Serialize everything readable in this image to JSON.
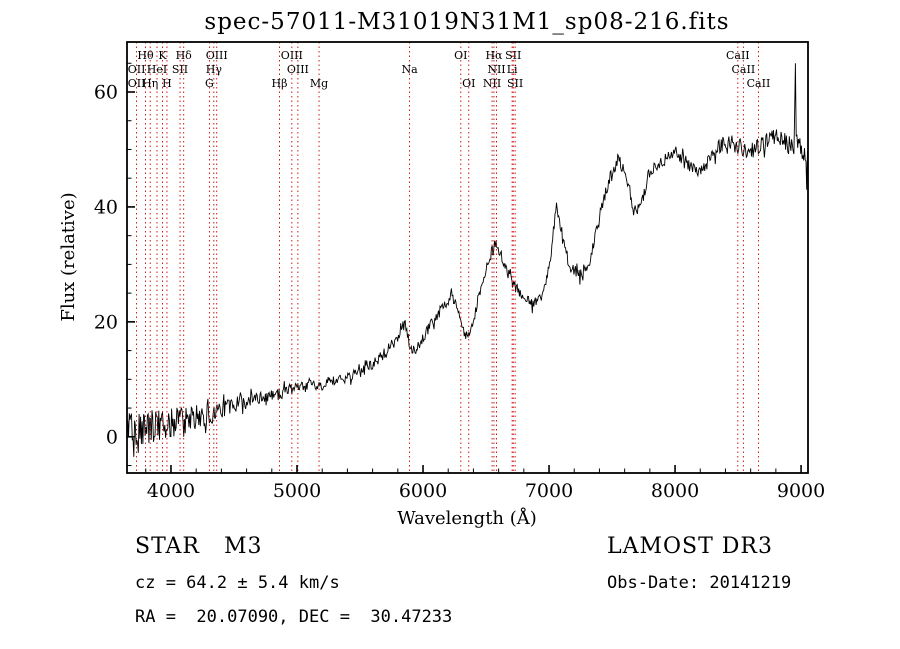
{
  "title": "spec-57011-M31019N31M1_sp08-216.fits",
  "chart_data": {
    "type": "line",
    "title": "spec-57011-M31019N31M1_sp08-216.fits",
    "xlabel": "Wavelength (Å)",
    "ylabel": "Flux (relative)",
    "xlim": [
      3651,
      9055
    ],
    "ylim": [
      -6.3,
      68.7
    ],
    "x_major_ticks": [
      4000,
      5000,
      6000,
      7000,
      8000,
      9000
    ],
    "y_major_ticks": [
      0,
      20,
      40,
      60
    ],
    "x_minor_step": 200,
    "y_minor_step": 5,
    "grid": false,
    "line_color": "#000000",
    "marker_color": "#cc0000",
    "series": [
      {
        "name": "flux",
        "anchors": [
          [
            3651,
            0.8
          ],
          [
            3700,
            1.0
          ],
          [
            3750,
            1.4
          ],
          [
            3800,
            1.6
          ],
          [
            3850,
            1.9
          ],
          [
            3900,
            2.1
          ],
          [
            3950,
            2.3
          ],
          [
            4000,
            2.5
          ],
          [
            4060,
            2.8
          ],
          [
            4120,
            3.0
          ],
          [
            4180,
            3.3
          ],
          [
            4250,
            3.7
          ],
          [
            4310,
            4.0
          ],
          [
            4380,
            4.5
          ],
          [
            4450,
            5.0
          ],
          [
            4550,
            5.8
          ],
          [
            4650,
            6.6
          ],
          [
            4750,
            7.1
          ],
          [
            4830,
            7.5
          ],
          [
            4870,
            7.2
          ],
          [
            4910,
            7.9
          ],
          [
            4960,
            8.3
          ],
          [
            5020,
            8.6
          ],
          [
            5080,
            8.8
          ],
          [
            5140,
            8.9
          ],
          [
            5180,
            8.5
          ],
          [
            5230,
            9.6
          ],
          [
            5300,
            9.9
          ],
          [
            5400,
            10.3
          ],
          [
            5500,
            11.2
          ],
          [
            5600,
            12.6
          ],
          [
            5700,
            14.6
          ],
          [
            5810,
            17.5
          ],
          [
            5860,
            19.5
          ],
          [
            5900,
            15.3
          ],
          [
            5950,
            14.6
          ],
          [
            6000,
            17.2
          ],
          [
            6080,
            20.2
          ],
          [
            6160,
            22.6
          ],
          [
            6230,
            24.6
          ],
          [
            6280,
            22.2
          ],
          [
            6330,
            17.6
          ],
          [
            6390,
            19.0
          ],
          [
            6440,
            24.2
          ],
          [
            6500,
            29.2
          ],
          [
            6545,
            32.2
          ],
          [
            6575,
            33.6
          ],
          [
            6620,
            31.6
          ],
          [
            6700,
            27.2
          ],
          [
            6790,
            24.2
          ],
          [
            6860,
            23.2
          ],
          [
            6910,
            23.8
          ],
          [
            6960,
            25.2
          ],
          [
            7020,
            32.0
          ],
          [
            7055,
            40.5
          ],
          [
            7100,
            36.2
          ],
          [
            7160,
            29.6
          ],
          [
            7240,
            28.2
          ],
          [
            7320,
            30.2
          ],
          [
            7400,
            38.2
          ],
          [
            7480,
            45.2
          ],
          [
            7555,
            48.6
          ],
          [
            7620,
            44.2
          ],
          [
            7675,
            38.8
          ],
          [
            7740,
            41.5
          ],
          [
            7800,
            46.2
          ],
          [
            7900,
            48.2
          ],
          [
            8000,
            49.6
          ],
          [
            8090,
            47.2
          ],
          [
            8200,
            45.8
          ],
          [
            8300,
            49.2
          ],
          [
            8400,
            51.6
          ],
          [
            8500,
            50.6
          ],
          [
            8600,
            49.6
          ],
          [
            8700,
            51.2
          ],
          [
            8800,
            52.6
          ],
          [
            8880,
            51.2
          ],
          [
            8930,
            50.2
          ],
          [
            8970,
            52.0
          ],
          [
            9010,
            49.0
          ],
          [
            9055,
            50.0
          ]
        ],
        "noise_profile": [
          [
            3651,
            3.2
          ],
          [
            4100,
            2.4
          ],
          [
            4500,
            1.4
          ],
          [
            5000,
            1.0
          ],
          [
            6000,
            0.9
          ],
          [
            6800,
            0.9
          ],
          [
            7500,
            1.1
          ],
          [
            8300,
            1.3
          ],
          [
            9055,
            1.7
          ]
        ],
        "spikes": [
          [
            3705,
            -3.5
          ],
          [
            3742,
            -2.8
          ],
          [
            6867,
            21.5
          ],
          [
            8950,
            56
          ],
          [
            8956,
            65
          ],
          [
            9045,
            43
          ]
        ]
      }
    ],
    "spectral_lines": [
      {
        "label": "OII",
        "wavelength": 3727,
        "row": 2
      },
      {
        "label": "OII",
        "wavelength": 3727,
        "row": 3
      },
      {
        "label": "Hθ",
        "wavelength": 3798,
        "row": 1
      },
      {
        "label": "Hη",
        "wavelength": 3835,
        "row": 3
      },
      {
        "label": "HeI",
        "wavelength": 3889,
        "row": 2
      },
      {
        "label": "K",
        "wavelength": 3933,
        "row": 1
      },
      {
        "label": "H",
        "wavelength": 3968,
        "row": 3
      },
      {
        "label": "SII",
        "wavelength": 4072,
        "row": 2
      },
      {
        "label": "Hδ",
        "wavelength": 4101,
        "row": 1
      },
      {
        "label": "G",
        "wavelength": 4305,
        "row": 3
      },
      {
        "label": "Hγ",
        "wavelength": 4340,
        "row": 2
      },
      {
        "label": "OIII",
        "wavelength": 4363,
        "row": 1
      },
      {
        "label": "Hβ",
        "wavelength": 4861,
        "row": 3
      },
      {
        "label": "OIII",
        "wavelength": 4959,
        "row": 1
      },
      {
        "label": "OIII",
        "wavelength": 5007,
        "row": 2
      },
      {
        "label": "Mg",
        "wavelength": 5175,
        "row": 3
      },
      {
        "label": "Na",
        "wavelength": 5893,
        "row": 2
      },
      {
        "label": "OI",
        "wavelength": 6300,
        "row": 1
      },
      {
        "label": "OI",
        "wavelength": 6363,
        "row": 3
      },
      {
        "label": "NII",
        "wavelength": 6548,
        "row": 3
      },
      {
        "label": "Hα",
        "wavelength": 6563,
        "row": 1
      },
      {
        "label": "NII",
        "wavelength": 6583,
        "row": 2
      },
      {
        "label": "Li",
        "wavelength": 6707,
        "row": 2
      },
      {
        "label": "SII",
        "wavelength": 6716,
        "row": 1
      },
      {
        "label": "SII",
        "wavelength": 6731,
        "row": 3
      },
      {
        "label": "CaII",
        "wavelength": 8498,
        "row": 1
      },
      {
        "label": "CaII",
        "wavelength": 8542,
        "row": 2
      },
      {
        "label": "CaII",
        "wavelength": 8662,
        "row": 3
      }
    ]
  },
  "footer": {
    "left": {
      "line1": "STAR   M3",
      "line2": "cz = 64.2 ± 5.4 km/s",
      "line3": "RA =  20.07090, DEC =  30.47233"
    },
    "right": {
      "line1": "LAMOST DR3",
      "line2": "Obs-Date: 20141219"
    }
  }
}
